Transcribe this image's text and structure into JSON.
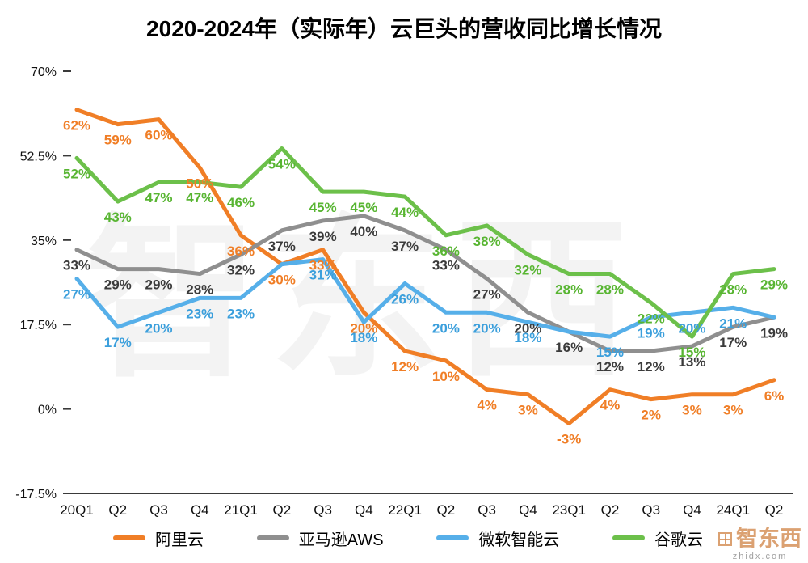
{
  "watermark": {
    "text": "智东西",
    "site": "zhidx.com"
  },
  "chart_data": {
    "type": "line",
    "title": "2020-2024年（实际年）云巨头的营收同比增长情况",
    "xlabel": "",
    "ylabel": "",
    "value_suffix": "%",
    "grid": false,
    "legend_position": "bottom",
    "ylim": [
      -17.5,
      70
    ],
    "yticks": [
      {
        "label": "70%",
        "value": 70
      },
      {
        "label": "52.5%",
        "value": 52.5
      },
      {
        "label": "35%",
        "value": 35
      },
      {
        "label": "17.5%",
        "value": 17.5
      },
      {
        "label": "0%",
        "value": 0
      },
      {
        "label": "-17.5%",
        "value": -17.5
      }
    ],
    "categories": [
      "20Q1",
      "Q2",
      "Q3",
      "Q4",
      "21Q1",
      "Q2",
      "Q3",
      "Q4",
      "22Q1",
      "Q2",
      "Q3",
      "Q4",
      "23Q1",
      "Q2",
      "Q3",
      "Q4",
      "24Q1",
      "Q2"
    ],
    "series": [
      {
        "id": "alibaba-cloud",
        "name": "阿里云",
        "color": "#F07E26",
        "label_color": "#F07E26",
        "values": [
          62,
          59,
          60,
          50,
          36,
          30,
          33,
          20,
          12,
          10,
          4,
          3,
          -3,
          4,
          2,
          3,
          3,
          6
        ]
      },
      {
        "id": "amazon-aws",
        "name": "亚马逊AWS",
        "color": "#8F8F8F",
        "label_color": "#3b3b3b",
        "values": [
          33,
          29,
          29,
          28,
          32,
          37,
          39,
          40,
          37,
          33,
          27,
          20,
          16,
          12,
          12,
          13,
          17,
          19
        ]
      },
      {
        "id": "microsoft-cloud",
        "name": "微软智能云",
        "color": "#56AFE9",
        "label_color": "#3B9FDC",
        "values": [
          27,
          17,
          20,
          23,
          23,
          30,
          31,
          18,
          26,
          20,
          20,
          18,
          16,
          15,
          19,
          20,
          21,
          19
        ]
      },
      {
        "id": "google-cloud",
        "name": "谷歌云",
        "color": "#6CC04A",
        "label_color": "#58B532",
        "values": [
          52,
          43,
          47,
          47,
          46,
          54,
          45,
          45,
          44,
          36,
          38,
          32,
          28,
          28,
          22,
          15,
          28,
          29
        ]
      }
    ]
  }
}
